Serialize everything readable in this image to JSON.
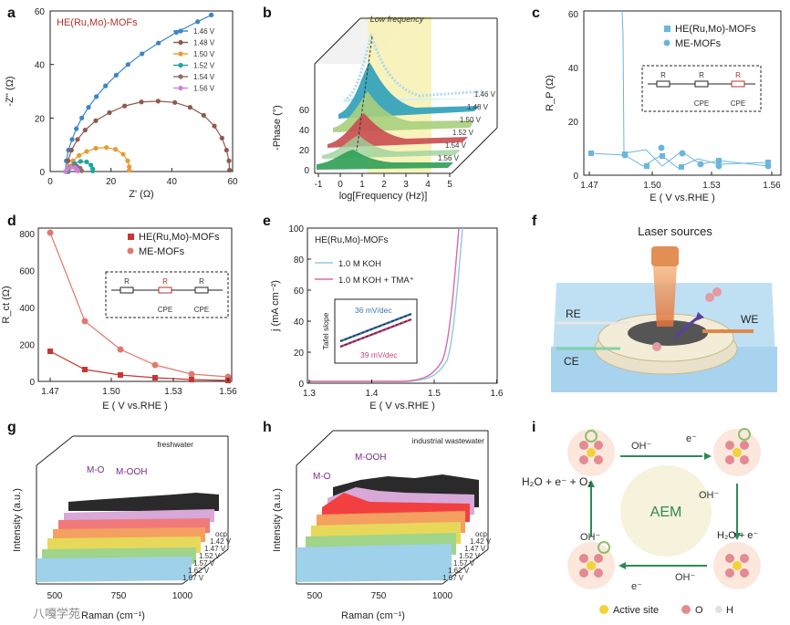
{
  "panel_letters": [
    "a",
    "b",
    "c",
    "d",
    "e",
    "f",
    "g",
    "h",
    "i"
  ],
  "chart_data": [
    {
      "id": "a",
      "type": "scatter",
      "title": "HE(Ru,Mo)-MOFs",
      "xlabel": "Z' (Ω)",
      "ylabel": "-Z'' (Ω)",
      "xlim": [
        0,
        60
      ],
      "ylim": [
        0,
        60
      ],
      "xticks": [
        "0",
        "20",
        "40",
        "60"
      ],
      "yticks": [
        "0",
        "20",
        "40",
        "60"
      ],
      "legend_position": "top-right",
      "series": [
        {
          "name": "1.46 V",
          "color": "#3b84c8",
          "points": [
            [
              5,
              0
            ],
            [
              5.3,
              4
            ],
            [
              6,
              8
            ],
            [
              7.2,
              12
            ],
            [
              8.6,
              16
            ],
            [
              10.4,
              20
            ],
            [
              12.6,
              24
            ],
            [
              15.2,
              28
            ],
            [
              18.2,
              32
            ],
            [
              21.7,
              36
            ],
            [
              25.6,
              40
            ],
            [
              30.2,
              44
            ],
            [
              35.6,
              48
            ],
            [
              41.5,
              52
            ],
            [
              48.5,
              56
            ],
            [
              53,
              58.5
            ]
          ]
        },
        {
          "name": "1.48 V",
          "color": "#8e5a4d",
          "points": [
            [
              5.5,
              0
            ],
            [
              5.9,
              4
            ],
            [
              7,
              8
            ],
            [
              9,
              12
            ],
            [
              11.5,
              15.5
            ],
            [
              15,
              19
            ],
            [
              19.5,
              22
            ],
            [
              24.5,
              24.5
            ],
            [
              30,
              26
            ],
            [
              35.5,
              26.3
            ],
            [
              41,
              25.8
            ],
            [
              46,
              24
            ],
            [
              50.5,
              21
            ],
            [
              54,
              17
            ],
            [
              56.5,
              12.5
            ],
            [
              58,
              8
            ],
            [
              58.8,
              4
            ],
            [
              59,
              0.5
            ]
          ]
        },
        {
          "name": "1.50 V",
          "color": "#e79a33",
          "points": [
            [
              6,
              0
            ],
            [
              6.4,
              2
            ],
            [
              7.5,
              4
            ],
            [
              9.5,
              6
            ],
            [
              12,
              7.5
            ],
            [
              15,
              8.7
            ],
            [
              18.5,
              9
            ],
            [
              21.5,
              8.3
            ],
            [
              24,
              6.5
            ],
            [
              25.5,
              4
            ],
            [
              26,
              1.8
            ],
            [
              26,
              0.5
            ]
          ]
        },
        {
          "name": "1.52 V",
          "color": "#1fa5a0",
          "points": [
            [
              6,
              0
            ],
            [
              6.5,
              1.5
            ],
            [
              8,
              3
            ],
            [
              10,
              3.8
            ],
            [
              12,
              3.6
            ],
            [
              13.4,
              2.4
            ],
            [
              14,
              1
            ],
            [
              14,
              0.2
            ]
          ]
        },
        {
          "name": "1.54 V",
          "color": "#8a6f6a",
          "points": [
            [
              5.5,
              0
            ],
            [
              6,
              1
            ],
            [
              7.3,
              1.9
            ],
            [
              8.7,
              2
            ],
            [
              9.8,
              1.3
            ],
            [
              10.3,
              0.3
            ]
          ]
        },
        {
          "name": "1.56 V",
          "color": "#cf82d9",
          "points": [
            [
              5,
              0
            ],
            [
              5.6,
              0.9
            ],
            [
              6.8,
              1.6
            ],
            [
              8,
              1.5
            ],
            [
              8.8,
              0.8
            ],
            [
              9.1,
              0.2
            ]
          ]
        }
      ]
    },
    {
      "id": "b",
      "type": "line",
      "title": "",
      "xlabel": "log[Frequency (Hz)]",
      "ylabel": "-Phase (°)",
      "annotation": "Low frequency",
      "xticks": [
        "-1",
        "0",
        "1",
        "2",
        "3",
        "4",
        "5"
      ],
      "yticks": [
        "0",
        "20",
        "40",
        "60"
      ],
      "series_names": [
        "1.46 V",
        "1.48 V",
        "1.50 V",
        "1.52 V",
        "1.54 V",
        "1.56 V"
      ]
    },
    {
      "id": "c",
      "type": "line",
      "xlabel": "E ( V vs.RHE )",
      "ylabel": "R_P (Ω)",
      "xticks": [
        "1.47",
        "1.50",
        "1.53",
        "1.56"
      ],
      "yticks": [
        "0",
        "20",
        "40",
        "60"
      ],
      "legend": [
        "HE(Ru,Mo)-MOFs",
        "ME-MOFs"
      ],
      "circuit_labels": [
        "R",
        "R",
        "R",
        "CPE",
        "CPE"
      ]
    },
    {
      "id": "d",
      "type": "line",
      "xlabel": "E ( V vs.RHE )",
      "ylabel": "R_ct (Ω)",
      "xticks": [
        "1.47",
        "1.50",
        "1.53",
        "1.56"
      ],
      "yticks": [
        "0",
        "200",
        "400",
        "600",
        "800"
      ],
      "legend": [
        "HE(Ru,Mo)-MOFs",
        "ME-MOFs"
      ],
      "circuit_labels": [
        "R",
        "R",
        "R",
        "CPE",
        "CPE"
      ]
    },
    {
      "id": "e",
      "type": "line",
      "title": "HE(Ru,Mo)-MOFs",
      "xlabel": "E ( V vs.RHE )",
      "ylabel": "j (mA cm⁻²)",
      "xticks": [
        "1.3",
        "1.4",
        "1.5",
        "1.6"
      ],
      "yticks": [
        "0",
        "20",
        "40",
        "60",
        "80",
        "100"
      ],
      "legend": [
        "1.0 M KOH",
        "1.0 M KOH + TMA⁺"
      ],
      "inset": {
        "ylabel": "Tafel slope",
        "annotations": [
          "36 mV/dec",
          "39 mV/dec"
        ]
      }
    },
    {
      "id": "g",
      "type": "area",
      "xlabel": "Raman (cm⁻¹)",
      "ylabel": "Intensity (a.u.)",
      "xticks": [
        "500",
        "750",
        "1000"
      ],
      "annotations": [
        "freshwater",
        "M-O",
        "M-OOH"
      ],
      "depth_labels": [
        "ocp",
        "1.42 V",
        "1.47 V",
        "1.52 V",
        "1.57 V",
        "1.62 V",
        "1.67 V"
      ]
    },
    {
      "id": "h",
      "type": "area",
      "xlabel": "Raman (cm⁻¹)",
      "ylabel": "Intensity (a.u.)",
      "xticks": [
        "500",
        "750",
        "1000"
      ],
      "annotations": [
        "industrial wastewater",
        "M-O",
        "M-OOH"
      ],
      "depth_labels": [
        "ocp",
        "1.42 V",
        "1.47 V",
        "1.52 V",
        "1.57 V",
        "1.62 V",
        "1.67 V"
      ]
    }
  ],
  "panel_f": {
    "title": "Laser sources",
    "labels": [
      "RE",
      "WE",
      "CE"
    ]
  },
  "panel_i": {
    "center": "AEM",
    "left_equation": "H₂O + e⁻ + O₂",
    "right_product": "H₂O + e⁻",
    "oh_labels": [
      "OH⁻",
      "OH⁻",
      "OH⁻",
      "OH⁻"
    ],
    "electron_labels": [
      "e⁻",
      "e⁻"
    ],
    "legend": [
      "Active site",
      "O",
      "H"
    ]
  },
  "watermark": "八嘎学苑"
}
